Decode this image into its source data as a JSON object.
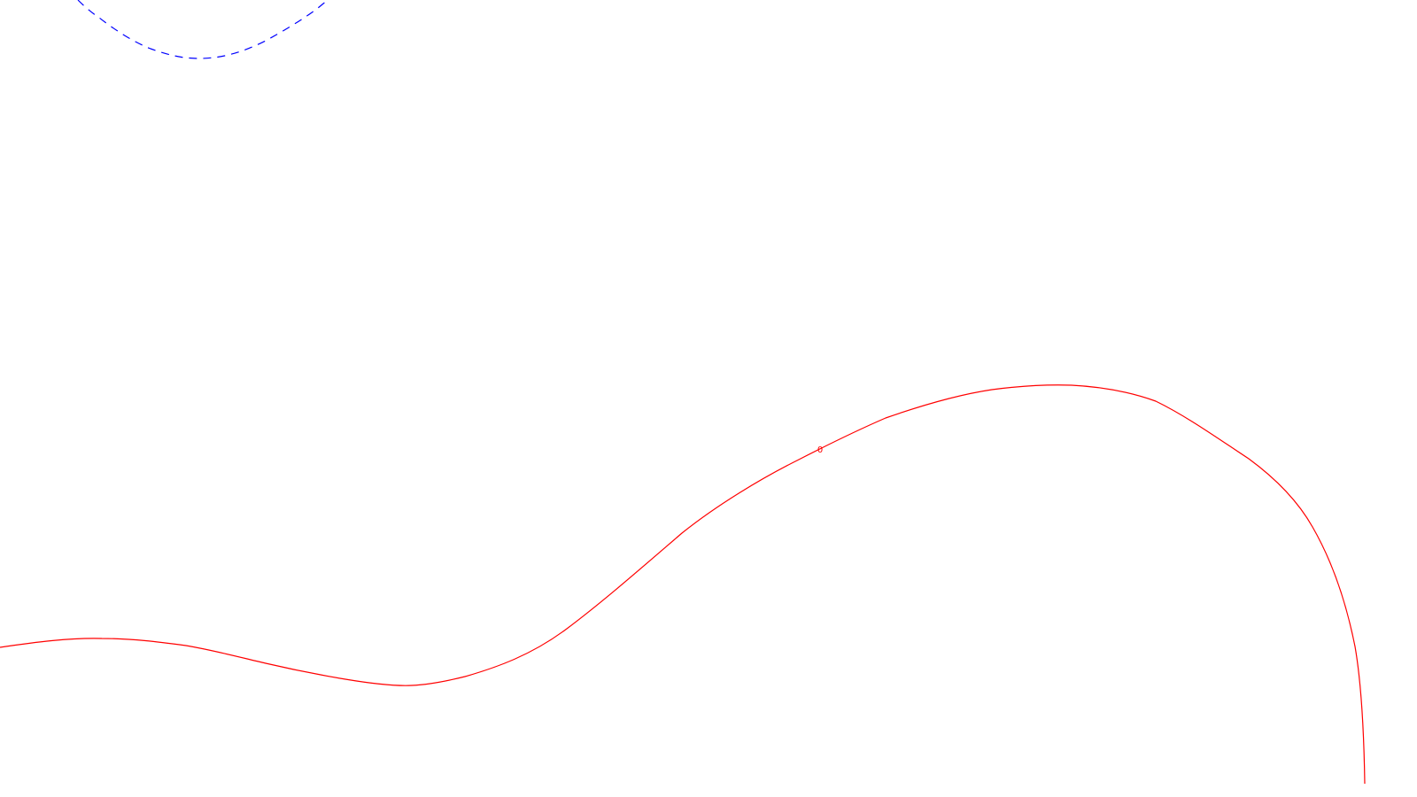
{
  "contours": [
    {
      "name": "red-contour",
      "color": "#ff0000",
      "style": "solid",
      "label": "0"
    },
    {
      "name": "blue-contour",
      "color": "#0000ff",
      "style": "dashed",
      "label": ""
    }
  ]
}
